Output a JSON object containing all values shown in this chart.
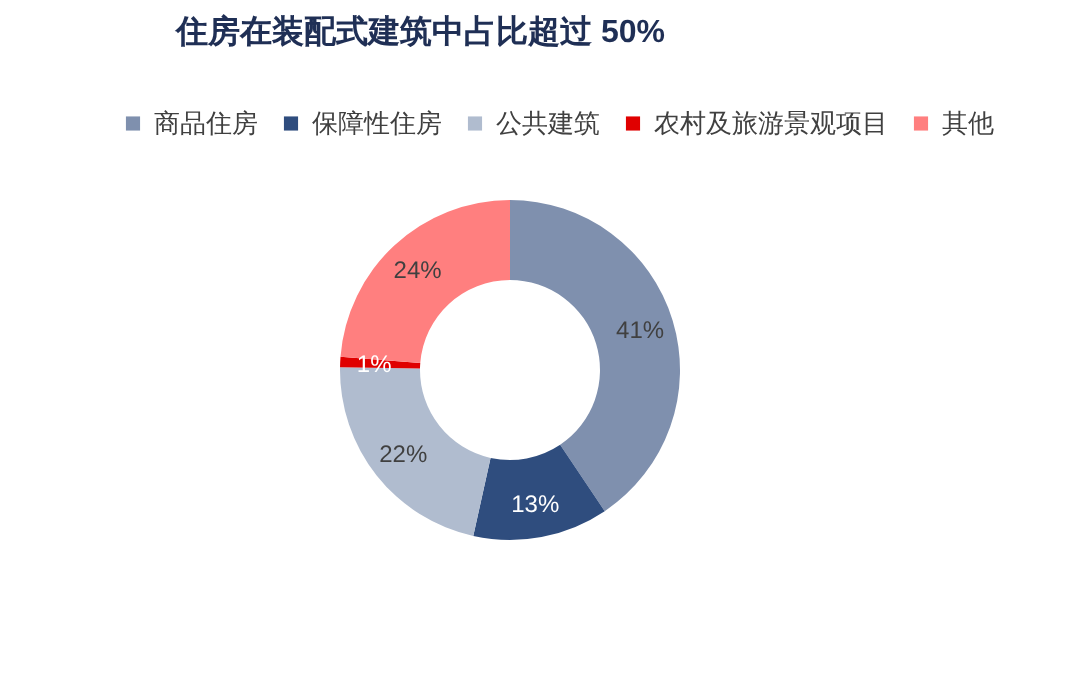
{
  "chart_data": {
    "type": "donut",
    "title": "住房在装配式建筑中占比超过 50%",
    "categories": [
      "商品住房",
      "保障性住房",
      "公共建筑",
      "农村及旅游景观项目",
      "其他"
    ],
    "values": [
      41,
      13,
      22,
      1,
      24
    ],
    "value_labels": [
      "41%",
      "13%",
      "22%",
      "1%",
      "24%"
    ],
    "colors": [
      "#7f90ae",
      "#2f4d7e",
      "#b0bccf",
      "#e00000",
      "#ff7f7f"
    ],
    "legend": "top"
  }
}
